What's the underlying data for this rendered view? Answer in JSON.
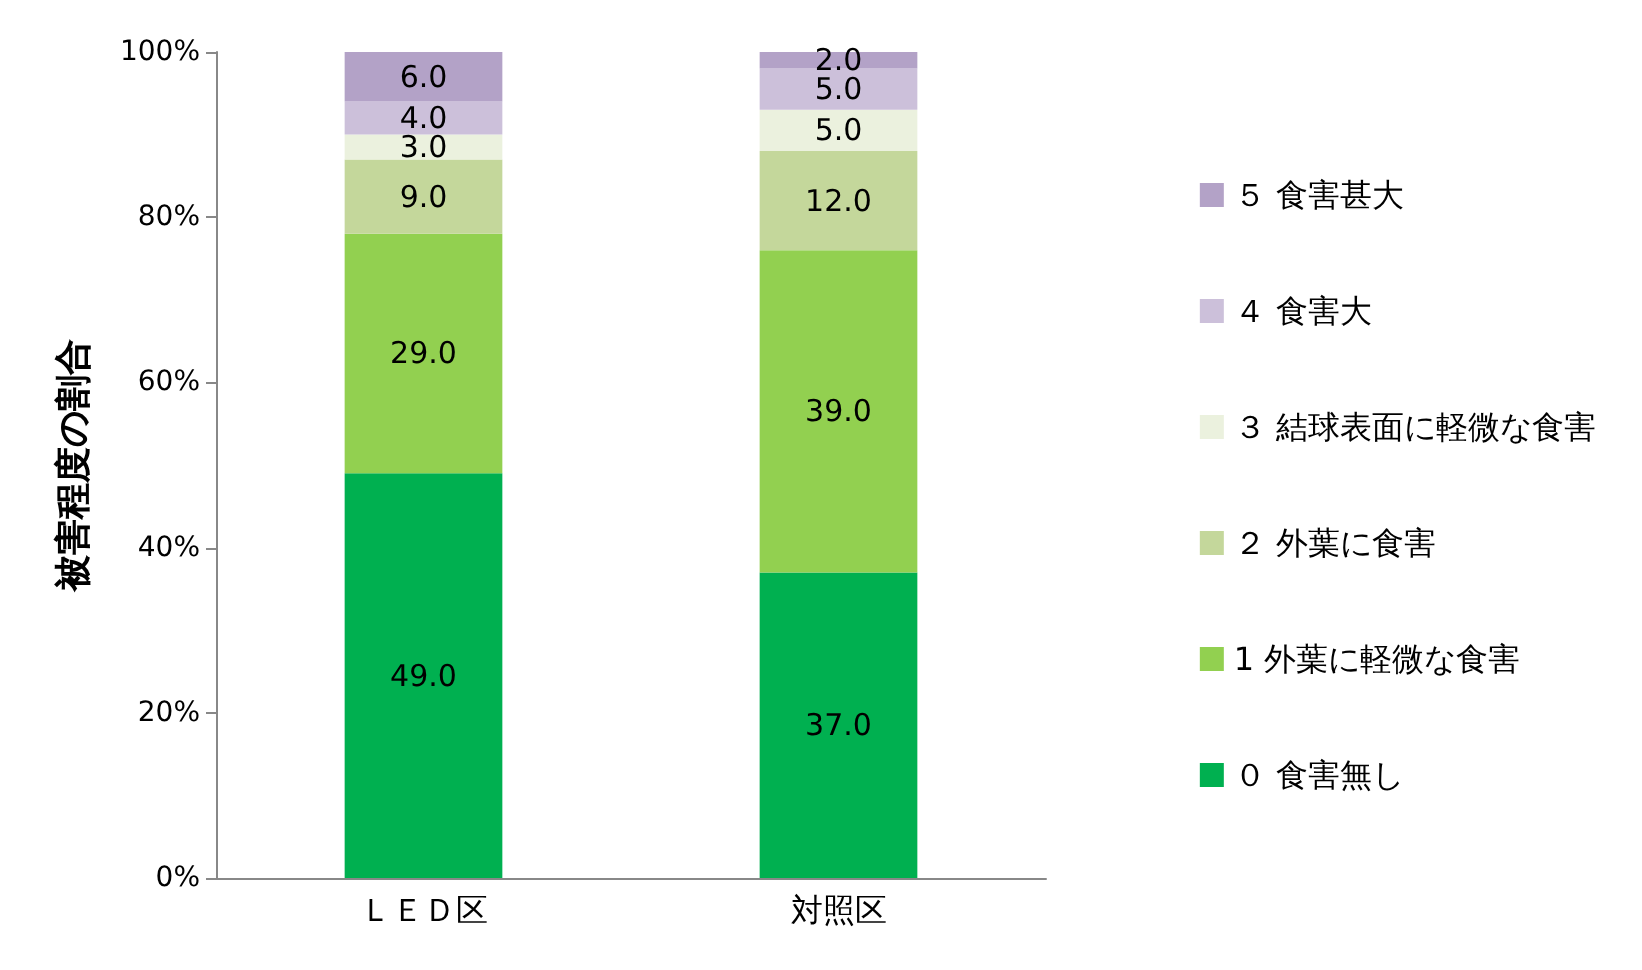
{
  "chart_data": {
    "type": "bar",
    "stacked": true,
    "ylabel": "被害程度の割合",
    "categories": [
      "ＬＥＤ区",
      "対照区"
    ],
    "series": [
      {
        "name": "０ 食害無し",
        "color": "#00b050",
        "values": [
          49,
          37
        ],
        "value_labels": [
          "49.0",
          "37.0"
        ]
      },
      {
        "name": "1 外葉に軽微な食害",
        "color": "#92d050",
        "values": [
          29,
          39
        ],
        "value_labels": [
          "29.0",
          "39.0"
        ]
      },
      {
        "name": "２ 外葉に食害",
        "color": "#c4d79b",
        "values": [
          9,
          12
        ],
        "value_labels": [
          "9.0",
          "12.0"
        ]
      },
      {
        "name": "３ 結球表面に軽微な食害",
        "color": "#ebf1de",
        "values": [
          3,
          5
        ],
        "value_labels": [
          "3.0",
          "5.0"
        ]
      },
      {
        "name": "４ 食害大",
        "color": "#ccc0da",
        "values": [
          4,
          5
        ],
        "value_labels": [
          "4.0",
          "5.0"
        ]
      },
      {
        "name": "５ 食害甚大",
        "color": "#b3a2c7",
        "values": [
          6,
          2
        ],
        "value_labels": [
          "6.0",
          "2.0"
        ]
      }
    ],
    "ylim": [
      0,
      100
    ],
    "yticks": [
      {
        "value": 0,
        "label": "0%"
      },
      {
        "value": 20,
        "label": "20%"
      },
      {
        "value": 40,
        "label": "40%"
      },
      {
        "value": 60,
        "label": "60%"
      },
      {
        "value": 80,
        "label": "80%"
      },
      {
        "value": 100,
        "label": "100%"
      }
    ],
    "grid": false,
    "legend": "right"
  }
}
